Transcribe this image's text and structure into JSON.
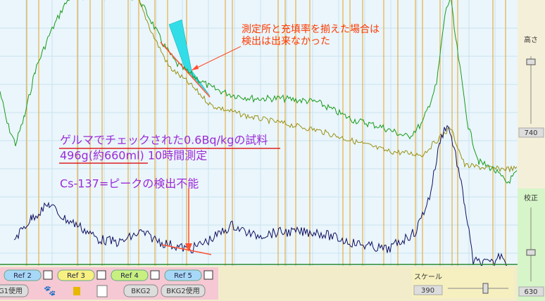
{
  "annotations": {
    "note_line1": "測定所と充填率を揃えた場合は",
    "note_line2": "検出は出来なかった",
    "sample_line1": "ゲルマでチェックされた0.6Bq/kgの試料",
    "sample_line2": "496g(約660ml)  10時間測定",
    "peak_note": "Cs-137=ピークの検出不能"
  },
  "side_panel": {
    "height_label": "高さ",
    "height_value": 740,
    "calib_label": "校正",
    "calib_value": 630
  },
  "toolbar": {
    "refs": [
      "Ref 2",
      "Ref 3",
      "Ref 4",
      "Ref 5"
    ],
    "buttons": [
      "G1使用",
      "BKG2",
      "BKG2使用"
    ],
    "scale_label": "スケール",
    "scale_value": 390
  }
}
